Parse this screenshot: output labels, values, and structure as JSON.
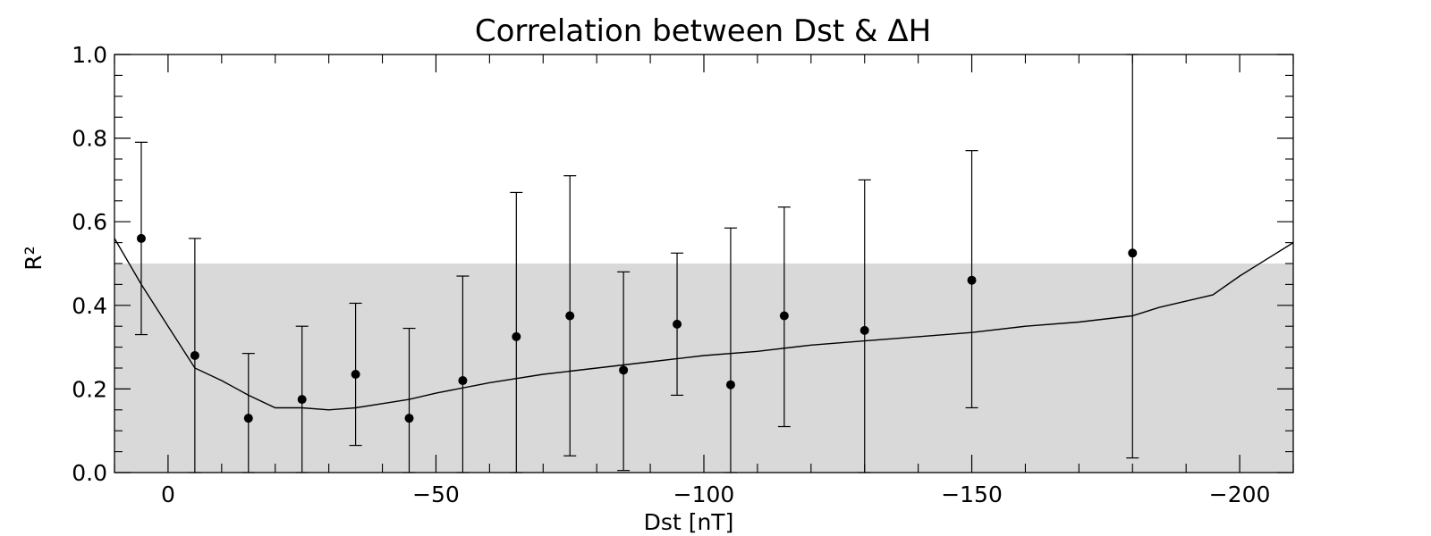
{
  "chart_data": {
    "type": "scatter",
    "title": "Correlation between Dst & ΔH",
    "xlabel": "Dst [nT]",
    "ylabel": "R²",
    "xlim": [
      10,
      -210
    ],
    "ylim": [
      0,
      1
    ],
    "x_ticks": [
      0,
      -50,
      -100,
      -150,
      -200
    ],
    "x_tick_labels": [
      "0",
      "−50",
      "−100",
      "−150",
      "−200"
    ],
    "y_ticks": [
      0,
      0.2,
      0.4,
      0.6,
      0.8,
      1.0
    ],
    "y_tick_labels": [
      "0.0",
      "0.2",
      "0.4",
      "0.6",
      "0.8",
      "1.0"
    ],
    "shaded_region": {
      "y_from": 0,
      "y_to": 0.5,
      "color": "#d9d9d9"
    },
    "points": {
      "x": [
        5,
        -5,
        -15,
        -25,
        -35,
        -45,
        -55,
        -65,
        -75,
        -85,
        -95,
        -105,
        -115,
        -130,
        -150,
        -180
      ],
      "y": [
        0.56,
        0.28,
        0.13,
        0.175,
        0.235,
        0.13,
        0.22,
        0.325,
        0.375,
        0.245,
        0.355,
        0.21,
        0.375,
        0.34,
        0.46,
        0.525
      ],
      "err_low": [
        0.33,
        0.0,
        0.0,
        0.0,
        0.065,
        0.0,
        0.0,
        0.0,
        0.04,
        0.005,
        0.185,
        0.0,
        0.11,
        0.0,
        0.155,
        0.035
      ],
      "err_high": [
        0.79,
        0.56,
        0.285,
        0.35,
        0.405,
        0.345,
        0.47,
        0.67,
        0.71,
        0.48,
        0.525,
        0.585,
        0.635,
        0.7,
        0.77,
        1.0
      ]
    },
    "curve": {
      "x": [
        10,
        5,
        0,
        -5,
        -10,
        -15,
        -20,
        -25,
        -30,
        -35,
        -40,
        -45,
        -50,
        -60,
        -70,
        -80,
        -90,
        -100,
        -110,
        -120,
        -130,
        -140,
        -150,
        -160,
        -170,
        -180,
        -185,
        -190,
        -195,
        -200,
        -205,
        -210
      ],
      "y": [
        0.56,
        0.45,
        0.35,
        0.25,
        0.22,
        0.185,
        0.155,
        0.155,
        0.15,
        0.155,
        0.165,
        0.175,
        0.19,
        0.215,
        0.235,
        0.25,
        0.265,
        0.28,
        0.29,
        0.305,
        0.315,
        0.325,
        0.335,
        0.35,
        0.36,
        0.375,
        0.395,
        0.41,
        0.425,
        0.47,
        0.51,
        0.55
      ]
    },
    "grid": false
  }
}
